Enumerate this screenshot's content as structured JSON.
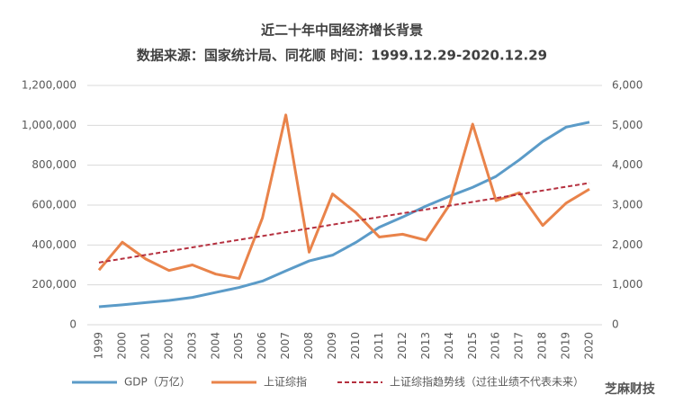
{
  "chart_data": {
    "type": "line",
    "title": "近二十年中国经济增长背景",
    "subtitle": "数据来源：国家统计局、同花顺 时间：1999.12.29-2020.12.29",
    "categories": [
      "1999",
      "2000",
      "2001",
      "2002",
      "2003",
      "2004",
      "2005",
      "2006",
      "2007",
      "2008",
      "2009",
      "2010",
      "2011",
      "2012",
      "2013",
      "2014",
      "2015",
      "2016",
      "2017",
      "2018",
      "2019",
      "2020"
    ],
    "series": [
      {
        "name": "GDP（万亿）",
        "color": "#5b9bc8",
        "values": [
          90000,
          100000,
          111000,
          122000,
          137000,
          162000,
          187000,
          219000,
          270000,
          320000,
          349000,
          413000,
          489000,
          540000,
          595000,
          644000,
          689000,
          744000,
          827000,
          919000,
          991000,
          1016000
        ]
      },
      {
        "name": "上证综指",
        "color": "#e9834a",
        "axis": "y2",
        "values": [
          1370,
          2070,
          1650,
          1360,
          1500,
          1270,
          1160,
          2680,
          5260,
          1820,
          3280,
          2810,
          2200,
          2270,
          2120,
          3000,
          5030,
          3110,
          3310,
          2490,
          3050,
          3400
        ],
        "dashed": false
      },
      {
        "name": "上证综指趋势线（过往业绩不代表未来）",
        "color": "#b5303f",
        "axis": "y2",
        "dashed": true,
        "values": [
          1560,
          1655,
          1750,
          1845,
          1940,
          2035,
          2130,
          2225,
          2320,
          2415,
          2510,
          2605,
          2700,
          2795,
          2890,
          2985,
          3080,
          3175,
          3270,
          3365,
          3460,
          3555
        ]
      }
    ],
    "ylim": [
      0,
      1200000
    ],
    "yticks": [
      0,
      {
        "value": 200000,
        "label": "200,000"
      },
      {
        "value": 400000,
        "label": "400,000"
      },
      {
        "value": 600000,
        "label": "600,000"
      },
      {
        "value": 800000,
        "label": "800,000"
      },
      {
        "value": 1000000,
        "label": "1,000,000"
      },
      {
        "value": 1200000,
        "label": "1,200,000"
      }
    ],
    "y2lim": [
      0,
      6000
    ],
    "y2ticks": [
      0,
      {
        "value": 1000,
        "label": "1,000"
      },
      {
        "value": 2000,
        "label": "2,000"
      },
      {
        "value": 3000,
        "label": "3,000"
      },
      {
        "value": 4000,
        "label": "4,000"
      },
      {
        "value": 5000,
        "label": "5,000"
      },
      {
        "value": 6000,
        "label": "6,000"
      }
    ],
    "grid": true,
    "legend": "bottom",
    "watermark": "芝麻财技"
  }
}
